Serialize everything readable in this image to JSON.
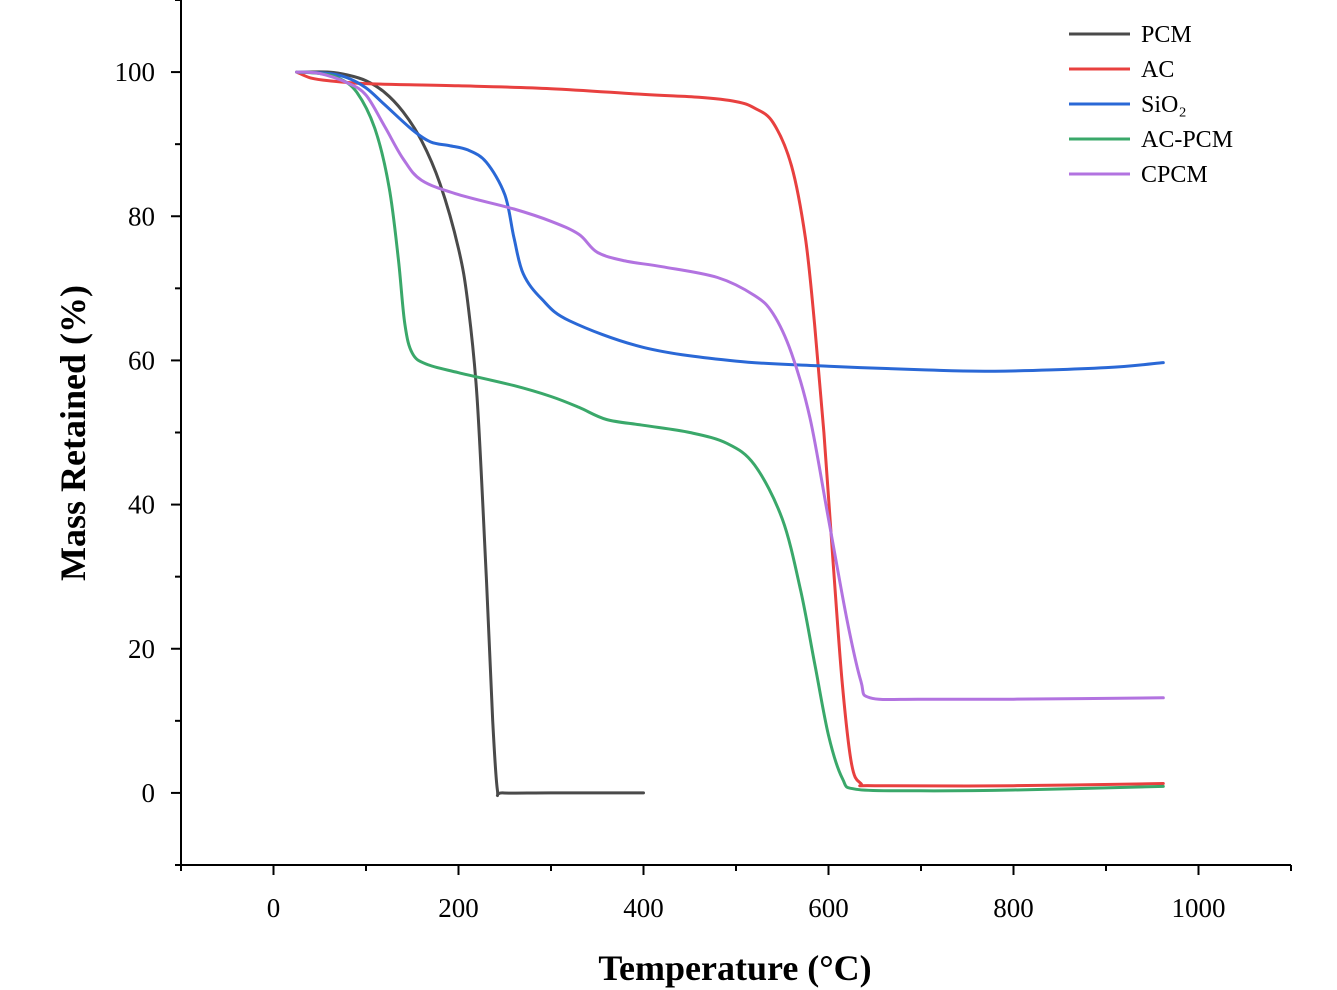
{
  "chart_data": {
    "type": "line",
    "xlabel": "Temperature (°C)",
    "ylabel": "Mass Retained (%)",
    "xlim": [
      -100,
      1100
    ],
    "ylim": [
      -10,
      110
    ],
    "x_ticks": [
      0,
      200,
      400,
      600,
      800,
      1000
    ],
    "y_ticks": [
      0,
      20,
      40,
      60,
      80,
      100
    ],
    "x_minor_step": 100,
    "y_minor_step": 10,
    "grid": false,
    "legend_position": "top-right",
    "series": [
      {
        "name": "PCM",
        "color": "#4a4a4a",
        "points": [
          [
            30,
            100
          ],
          [
            60,
            100
          ],
          [
            80,
            99.6
          ],
          [
            100,
            98.8
          ],
          [
            120,
            97.2
          ],
          [
            140,
            94.5
          ],
          [
            160,
            90.5
          ],
          [
            180,
            84.5
          ],
          [
            200,
            75.5
          ],
          [
            210,
            68
          ],
          [
            220,
            55
          ],
          [
            230,
            30
          ],
          [
            237,
            10
          ],
          [
            242,
            0.5
          ],
          [
            248,
            0
          ],
          [
            300,
            0
          ],
          [
            400,
            0
          ]
        ]
      },
      {
        "name": "AC",
        "color": "#e8403f",
        "points": [
          [
            25,
            100
          ],
          [
            40,
            99.2
          ],
          [
            60,
            98.8
          ],
          [
            100,
            98.4
          ],
          [
            200,
            98.1
          ],
          [
            300,
            97.7
          ],
          [
            400,
            96.9
          ],
          [
            460,
            96.5
          ],
          [
            500,
            95.9
          ],
          [
            520,
            95
          ],
          [
            540,
            93
          ],
          [
            560,
            87
          ],
          [
            575,
            77
          ],
          [
            585,
            65
          ],
          [
            595,
            50
          ],
          [
            605,
            32
          ],
          [
            615,
            15
          ],
          [
            625,
            4
          ],
          [
            635,
            1.3
          ],
          [
            650,
            1
          ],
          [
            800,
            1
          ],
          [
            962,
            1.3
          ]
        ]
      },
      {
        "name": "SiO₂",
        "color": "#2a68d6",
        "points": [
          [
            28,
            100
          ],
          [
            60,
            99.8
          ],
          [
            80,
            99.2
          ],
          [
            100,
            97.8
          ],
          [
            120,
            95.5
          ],
          [
            150,
            92
          ],
          [
            170,
            90.3
          ],
          [
            190,
            89.8
          ],
          [
            210,
            89.2
          ],
          [
            230,
            87.5
          ],
          [
            250,
            83
          ],
          [
            260,
            77
          ],
          [
            270,
            72
          ],
          [
            290,
            68.5
          ],
          [
            320,
            65.5
          ],
          [
            400,
            61.8
          ],
          [
            500,
            59.9
          ],
          [
            600,
            59.2
          ],
          [
            700,
            58.7
          ],
          [
            780,
            58.5
          ],
          [
            900,
            59
          ],
          [
            962,
            59.7
          ]
        ]
      },
      {
        "name": "AC-PCM",
        "color": "#3aa86a",
        "points": [
          [
            25,
            100
          ],
          [
            50,
            99.8
          ],
          [
            70,
            99.2
          ],
          [
            90,
            97.2
          ],
          [
            110,
            92
          ],
          [
            125,
            84
          ],
          [
            135,
            74
          ],
          [
            142,
            65
          ],
          [
            150,
            61
          ],
          [
            165,
            59.5
          ],
          [
            200,
            58.3
          ],
          [
            260,
            56.5
          ],
          [
            300,
            55
          ],
          [
            330,
            53.5
          ],
          [
            360,
            51.8
          ],
          [
            400,
            51
          ],
          [
            450,
            50
          ],
          [
            490,
            48.5
          ],
          [
            520,
            45.5
          ],
          [
            550,
            38
          ],
          [
            570,
            28
          ],
          [
            585,
            18
          ],
          [
            600,
            8
          ],
          [
            615,
            2
          ],
          [
            630,
            0.5
          ],
          [
            700,
            0.3
          ],
          [
            800,
            0.4
          ],
          [
            962,
            0.9
          ]
        ]
      },
      {
        "name": "CPCM",
        "color": "#b273e0",
        "points": [
          [
            25,
            100
          ],
          [
            50,
            99.8
          ],
          [
            80,
            98.5
          ],
          [
            100,
            96.8
          ],
          [
            120,
            92.5
          ],
          [
            140,
            88
          ],
          [
            160,
            85
          ],
          [
            200,
            83
          ],
          [
            260,
            81
          ],
          [
            300,
            79.3
          ],
          [
            330,
            77.5
          ],
          [
            350,
            75
          ],
          [
            380,
            73.8
          ],
          [
            420,
            73
          ],
          [
            480,
            71.5
          ],
          [
            520,
            69
          ],
          [
            540,
            66.5
          ],
          [
            560,
            61
          ],
          [
            580,
            52
          ],
          [
            600,
            38
          ],
          [
            620,
            24
          ],
          [
            635,
            15.5
          ],
          [
            645,
            13.2
          ],
          [
            700,
            13
          ],
          [
            800,
            13
          ],
          [
            962,
            13.2
          ]
        ]
      }
    ]
  }
}
